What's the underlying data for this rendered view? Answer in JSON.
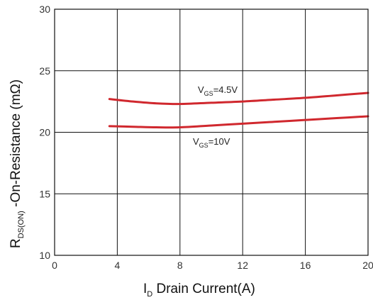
{
  "chart_data": {
    "type": "line",
    "xlabel_main": "I",
    "xlabel_sub": "D",
    "xlabel_rest": " Drain Current(A)",
    "ylabel_main": "R",
    "ylabel_sub": "DS(ON)",
    "ylabel_rest": " -On-Resistance (mΩ)",
    "xlim": [
      0,
      20
    ],
    "ylim": [
      10,
      30
    ],
    "xticks": [
      "0",
      "4",
      "8",
      "12",
      "16",
      "20"
    ],
    "yticks": [
      "10",
      "15",
      "20",
      "25",
      "30"
    ],
    "grid": true,
    "series": [
      {
        "name_main": "V",
        "name_sub": "GS",
        "name_rest": "=4.5V",
        "color": "#d0282e",
        "x": [
          3.5,
          5,
          6.5,
          8,
          10,
          12,
          14,
          16,
          18,
          20
        ],
        "y": [
          22.7,
          22.5,
          22.35,
          22.3,
          22.4,
          22.5,
          22.65,
          22.8,
          23.0,
          23.2
        ]
      },
      {
        "name_main": "V",
        "name_sub": "GS",
        "name_rest": "=10V",
        "color": "#d0282e",
        "x": [
          3.5,
          5,
          6.5,
          8,
          10,
          12,
          14,
          16,
          18,
          20
        ],
        "y": [
          20.5,
          20.45,
          20.4,
          20.4,
          20.55,
          20.7,
          20.85,
          21.0,
          21.15,
          21.3
        ]
      }
    ]
  }
}
